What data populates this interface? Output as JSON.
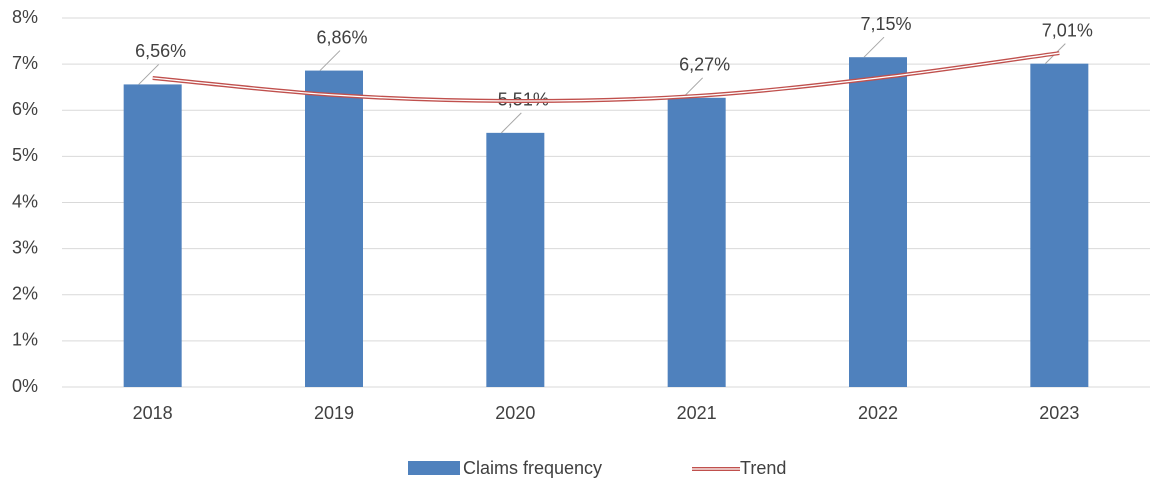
{
  "chart_data": {
    "type": "bar",
    "categories": [
      "2018",
      "2019",
      "2020",
      "2021",
      "2022",
      "2023"
    ],
    "series": [
      {
        "name": "Claims frequency",
        "type": "bar",
        "color": "#4f81bd",
        "values": [
          6.56,
          6.86,
          5.51,
          6.27,
          7.15,
          7.01
        ],
        "value_labels": [
          "6,56%",
          "6,86%",
          "5,51%",
          "6,27%",
          "7,15%",
          "7,01%"
        ]
      },
      {
        "name": "Trend",
        "type": "line",
        "color": "#c0504d",
        "values": [
          6.7,
          6.33,
          6.2,
          6.31,
          6.7,
          7.24
        ]
      }
    ],
    "ylim": [
      0,
      8
    ],
    "yticks": [
      {
        "value": 0,
        "label": "0%"
      },
      {
        "value": 1,
        "label": "1%"
      },
      {
        "value": 2,
        "label": "2%"
      },
      {
        "value": 3,
        "label": "3%"
      },
      {
        "value": 4,
        "label": "4%"
      },
      {
        "value": 5,
        "label": "5%"
      },
      {
        "value": 6,
        "label": "6%"
      },
      {
        "value": 7,
        "label": "7%"
      },
      {
        "value": 8,
        "label": "8%"
      }
    ],
    "grid": true,
    "legend": "bottom"
  }
}
